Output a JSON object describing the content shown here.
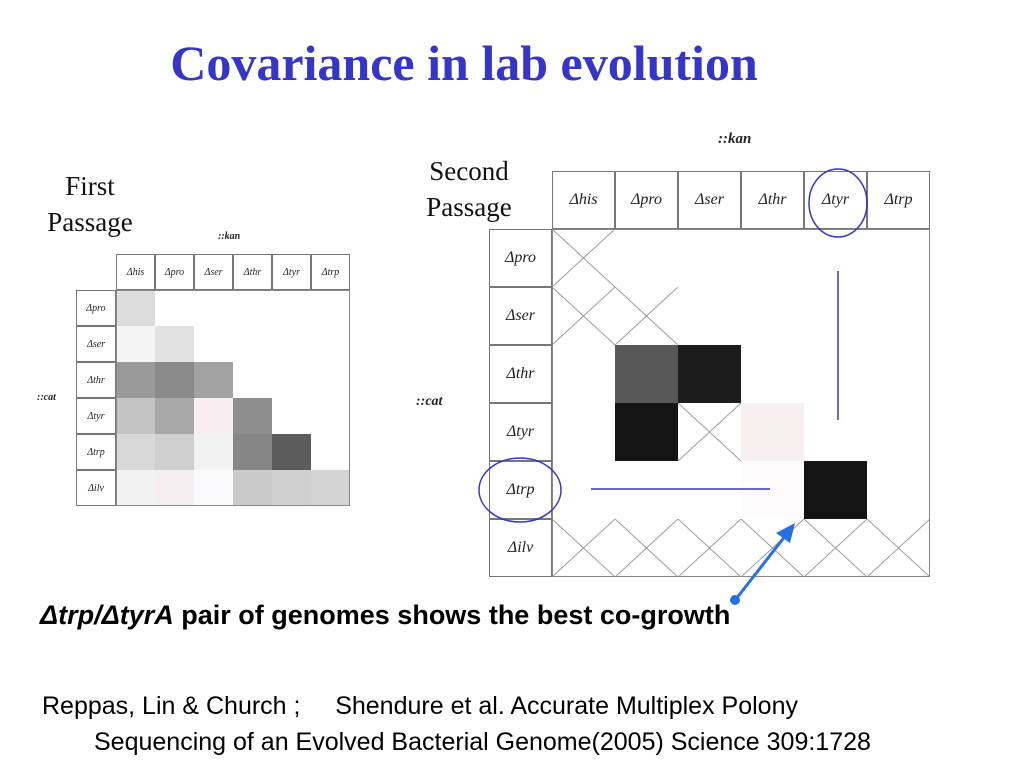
{
  "slide": {
    "title": "Covariance in lab evolution",
    "first_label_1": "First",
    "first_label_2": "Passage",
    "second_label_1": "Second",
    "second_label_2": "Passage",
    "caption_italic": "Δtrp/ΔtyrA",
    "caption_rest": " pair of genomes shows the best co-growth",
    "citation_line1": "Reppas, Lin & Church ;     Shendure et al. Accurate Multiplex Polony",
    "citation_line2": "Sequencing of an Evolved Bacterial Genome(2005)  Science 309:1728",
    "accent_color": "#3535c8",
    "annotation_color": "#2a6fe0"
  },
  "first_passage": {
    "col_axis": "::kan",
    "row_axis": "::cat",
    "col_headers": [
      "Δhis",
      "Δpro",
      "Δser",
      "Δthr",
      "Δtyr",
      "Δtrp"
    ],
    "row_headers": [
      "Δpro",
      "Δser",
      "Δthr",
      "Δtyr",
      "Δtrp",
      "Δilv"
    ],
    "shades": [
      [
        "#dcdcdc",
        null,
        null,
        null,
        null,
        null
      ],
      [
        "#f4f4f4",
        "#e2e2e2",
        null,
        null,
        null,
        null
      ],
      [
        "#9a9a9a",
        "#8a8a8a",
        "#a2a2a2",
        null,
        null,
        null
      ],
      [
        "#c4c4c4",
        "#a8a8a8",
        "#f6eef0",
        "#8e8e8e",
        null,
        null
      ],
      [
        "#d8d8d8",
        "#cfcfcf",
        "#f2f2f2",
        "#868686",
        "#5c5c5c",
        null
      ],
      [
        "#f2f2f2",
        "#f5eef0",
        "#fbfafc",
        "#cacaca",
        "#d0d0d0",
        "#d4d4d4"
      ]
    ]
  },
  "second_passage": {
    "col_axis": "::kan",
    "row_axis": "::cat",
    "col_headers": [
      "Δhis",
      "Δpro",
      "Δser",
      "Δthr",
      "Δtyr",
      "Δtrp"
    ],
    "row_headers": [
      "Δpro",
      "Δser",
      "Δthr",
      "Δtyr",
      "Δtrp",
      "Δilv"
    ],
    "shades": [
      [
        "x",
        null,
        null,
        null,
        null,
        null
      ],
      [
        "x",
        "x",
        null,
        null,
        null,
        null
      ],
      [
        "",
        "#585858",
        "#1c1c1c",
        null,
        null,
        null
      ],
      [
        "",
        "#141414",
        "x",
        "#f7eff0",
        null,
        null
      ],
      [
        "",
        "",
        "",
        "#fdfbfc",
        "#141414",
        null
      ],
      [
        "x",
        "x",
        "x",
        "x",
        "x",
        "x"
      ]
    ]
  }
}
